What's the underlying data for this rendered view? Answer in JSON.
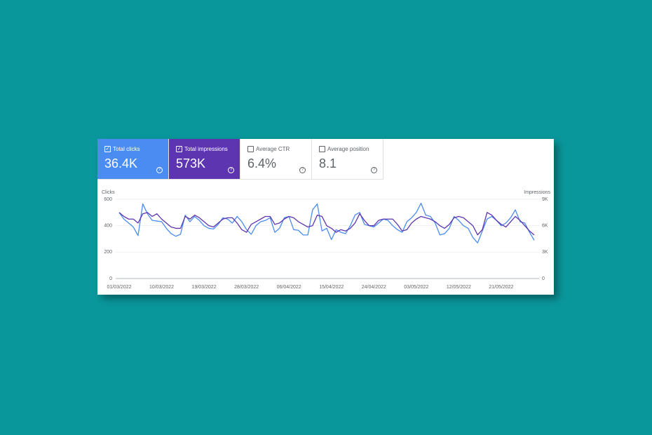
{
  "cards": [
    {
      "label": "Total clicks",
      "value": "36.4K",
      "checked": true,
      "color": "#4a8cf2"
    },
    {
      "label": "Total impressions",
      "value": "573K",
      "checked": true,
      "color": "#5e35b1"
    },
    {
      "label": "Average CTR",
      "value": "6.4%",
      "checked": false,
      "color": "#ffffff"
    },
    {
      "label": "Average position",
      "value": "8.1",
      "checked": false,
      "color": "#ffffff"
    }
  ],
  "chart_data": {
    "type": "line",
    "ylabel": "Clicks",
    "y2label": "Impressions",
    "x": [
      "01/03/2022",
      "02/03/2022",
      "03/03/2022",
      "04/03/2022",
      "05/03/2022",
      "06/03/2022",
      "07/03/2022",
      "08/03/2022",
      "09/03/2022",
      "10/03/2022",
      "11/03/2022",
      "12/03/2022",
      "13/03/2022",
      "14/03/2022",
      "15/03/2022",
      "16/03/2022",
      "17/03/2022",
      "18/03/2022",
      "19/03/2022",
      "20/03/2022",
      "21/03/2022",
      "22/03/2022",
      "23/03/2022",
      "24/03/2022",
      "25/03/2022",
      "26/03/2022",
      "27/03/2022",
      "28/03/2022",
      "29/03/2022",
      "30/03/2022",
      "31/03/2022",
      "01/04/2022",
      "02/04/2022",
      "03/04/2022",
      "04/04/2022",
      "05/04/2022",
      "06/04/2022",
      "07/04/2022",
      "08/04/2022",
      "09/04/2022",
      "10/04/2022",
      "11/04/2022",
      "12/04/2022",
      "13/04/2022",
      "14/04/2022",
      "15/04/2022",
      "16/04/2022",
      "17/04/2022",
      "18/04/2022",
      "19/04/2022",
      "20/04/2022",
      "21/04/2022",
      "22/04/2022",
      "23/04/2022",
      "24/04/2022",
      "25/04/2022",
      "26/04/2022",
      "27/04/2022",
      "28/04/2022",
      "29/04/2022",
      "30/04/2022",
      "01/05/2022",
      "02/05/2022",
      "03/05/2022",
      "04/05/2022",
      "05/05/2022",
      "06/05/2022",
      "07/05/2022",
      "08/05/2022",
      "09/05/2022",
      "10/05/2022",
      "11/05/2022",
      "12/05/2022",
      "13/05/2022",
      "14/05/2022",
      "15/05/2022",
      "16/05/2022",
      "17/05/2022",
      "18/05/2022",
      "19/05/2022",
      "20/05/2022",
      "21/05/2022",
      "22/05/2022",
      "23/05/2022",
      "24/05/2022",
      "25/05/2022",
      "26/05/2022",
      "27/05/2022",
      "28/05/2022"
    ],
    "xticks": [
      "01/03/2022",
      "10/03/2022",
      "19/03/2022",
      "28/03/2022",
      "06/04/2022",
      "15/04/2022",
      "24/04/2022",
      "03/05/2022",
      "12/05/2022",
      "21/05/2022"
    ],
    "ylim": [
      0,
      600
    ],
    "yticks": [
      0,
      200,
      400,
      600
    ],
    "y2lim": [
      0,
      9000
    ],
    "y2ticks": [
      0,
      {
        "value": 3000,
        "label": "3K"
      },
      {
        "value": 6000,
        "label": "6K"
      },
      {
        "value": 9000,
        "label": "9K"
      }
    ],
    "grid": true,
    "series": [
      {
        "name": "Clicks",
        "color": "#4a8cf2",
        "axis": "y",
        "values": [
          500,
          450,
          420,
          390,
          325,
          565,
          490,
          440,
          435,
          430,
          380,
          340,
          320,
          335,
          480,
          430,
          470,
          440,
          400,
          380,
          375,
          410,
          460,
          450,
          420,
          470,
          430,
          370,
          335,
          400,
          430,
          440,
          460,
          350,
          380,
          460,
          470,
          370,
          365,
          330,
          330,
          520,
          565,
          360,
          380,
          295,
          370,
          350,
          340,
          400,
          480,
          500,
          410,
          400,
          390,
          420,
          450,
          440,
          400,
          370,
          350,
          430,
          460,
          500,
          570,
          480,
          470,
          420,
          330,
          340,
          380,
          470,
          440,
          400,
          380,
          310,
          270,
          360,
          450,
          470,
          440,
          400,
          420,
          460,
          520,
          430,
          420,
          350,
          290
        ]
      },
      {
        "name": "Impressions",
        "color": "#5e35b1",
        "axis": "y2",
        "values": [
          7500,
          7050,
          6750,
          6750,
          6300,
          7350,
          7500,
          7050,
          7350,
          6750,
          6300,
          5850,
          5700,
          5700,
          7050,
          6750,
          7200,
          6900,
          6450,
          6000,
          5850,
          6300,
          6750,
          6900,
          6900,
          6300,
          5550,
          5250,
          6150,
          6450,
          6750,
          7050,
          7050,
          6150,
          6300,
          6750,
          7050,
          6900,
          6450,
          6150,
          5850,
          6000,
          7200,
          7050,
          6000,
          5700,
          5250,
          5550,
          5400,
          5700,
          6300,
          7350,
          6600,
          6000,
          6000,
          6600,
          6750,
          6750,
          6750,
          6150,
          5400,
          5550,
          6300,
          6750,
          7050,
          6900,
          6750,
          6450,
          6000,
          5700,
          6150,
          6900,
          7050,
          6900,
          6450,
          6000,
          4950,
          5550,
          7500,
          7200,
          6600,
          6150,
          5850,
          6450,
          7050,
          6600,
          6000,
          5400,
          4950
        ]
      }
    ]
  }
}
